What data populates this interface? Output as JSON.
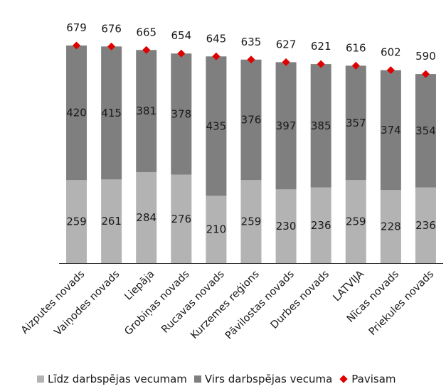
{
  "chart_data": {
    "type": "bar",
    "stacked": true,
    "categories": [
      "Aizputes novads",
      "Vaiņodes novads",
      "Liepāja",
      "Grobiņas novads",
      "Rucavas novads",
      "Kurzemes reģions",
      "Pāvilostas novads",
      "Durbes novads",
      "LATVIJA",
      "Nīcas novads",
      "Priekules novads"
    ],
    "series": [
      {
        "name": "Līdz darbspējas vecumam",
        "color": "#b3b3b3",
        "values": [
          259,
          261,
          284,
          276,
          210,
          259,
          230,
          236,
          259,
          228,
          236
        ]
      },
      {
        "name": "Virs darbspējas vecuma",
        "color": "#7f7f7f",
        "values": [
          420,
          415,
          381,
          378,
          435,
          376,
          397,
          385,
          357,
          374,
          354
        ]
      }
    ],
    "total": {
      "name": "Pavisam",
      "color": "#e00000",
      "marker": "diamond",
      "values": [
        679,
        676,
        665,
        654,
        645,
        635,
        627,
        621,
        616,
        602,
        590
      ]
    },
    "ylim": [
      0,
      700
    ],
    "grid": false,
    "legend": "bottom",
    "title": "",
    "xlabel": "",
    "ylabel": ""
  }
}
